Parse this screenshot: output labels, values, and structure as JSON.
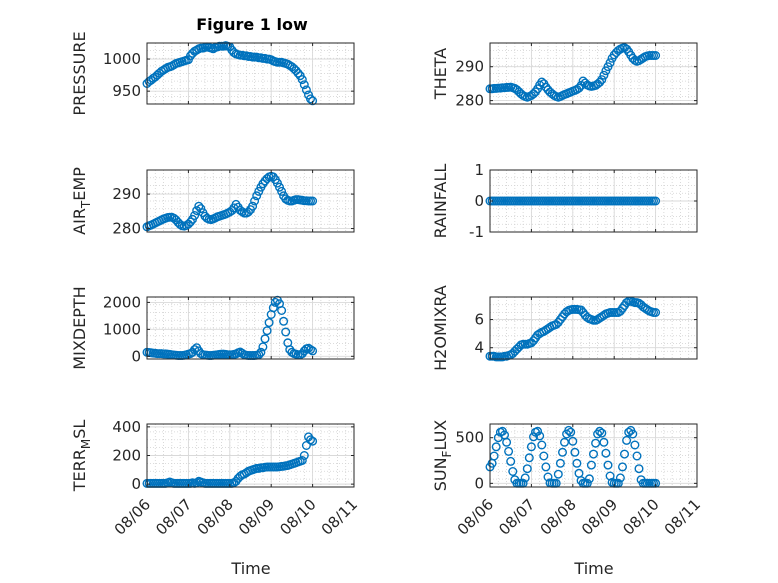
{
  "figure": {
    "title": "Figure 1 low",
    "xlabel": "Time",
    "x_ticklabels": [
      "08/06",
      "08/07",
      "08/08",
      "08/09",
      "08/10",
      "08/11"
    ],
    "marker_color": "#0072BD"
  },
  "chart_data": [
    {
      "type": "scatter",
      "ylabel": "PRESSURE",
      "title": "Figure 1 low",
      "xlim": [
        6,
        11
      ],
      "ylim": [
        930,
        1025
      ],
      "yticks": [
        950,
        1000
      ],
      "grid": true,
      "x": [
        6.0,
        6.05,
        6.1,
        6.15,
        6.2,
        6.25,
        6.3,
        6.35,
        6.4,
        6.45,
        6.5,
        6.55,
        6.6,
        6.65,
        6.7,
        6.75,
        6.8,
        6.85,
        6.9,
        6.95,
        7.0,
        7.05,
        7.1,
        7.15,
        7.2,
        7.25,
        7.3,
        7.35,
        7.4,
        7.45,
        7.5,
        7.55,
        7.6,
        7.65,
        7.7,
        7.75,
        7.8,
        7.85,
        7.9,
        7.95,
        8.0,
        8.05,
        8.1,
        8.15,
        8.2,
        8.25,
        8.3,
        8.35,
        8.4,
        8.45,
        8.5,
        8.55,
        8.6,
        8.65,
        8.7,
        8.75,
        8.8,
        8.85,
        8.9,
        8.95,
        9.0,
        9.05,
        9.1,
        9.15,
        9.2,
        9.25,
        9.3,
        9.35,
        9.4,
        9.45,
        9.5,
        9.55,
        9.6,
        9.65,
        9.7,
        9.75,
        9.8,
        9.85,
        9.9,
        9.95,
        10.0
      ],
      "y": [
        962,
        965,
        967,
        970,
        972,
        975,
        978,
        981,
        983,
        985,
        987,
        988,
        989,
        991,
        993,
        994,
        995,
        996,
        997,
        998,
        999,
        1005,
        1009,
        1012,
        1014,
        1016,
        1017,
        1017,
        1018,
        1019,
        1018,
        1017,
        1016,
        1018,
        1019,
        1020,
        1020,
        1020,
        1021,
        1020,
        1019,
        1014,
        1010,
        1008,
        1007,
        1006,
        1006,
        1005,
        1005,
        1004,
        1004,
        1003,
        1003,
        1003,
        1002,
        1002,
        1001,
        1001,
        1000,
        1000,
        999,
        997,
        996,
        995,
        995,
        995,
        994,
        993,
        992,
        990,
        988,
        985,
        982,
        978,
        974,
        968,
        960,
        952,
        944,
        938,
        935
      ]
    },
    {
      "type": "scatter",
      "ylabel": "THETA",
      "xlim": [
        6,
        11
      ],
      "ylim": [
        279,
        297
      ],
      "yticks": [
        280,
        290
      ],
      "grid": true,
      "x": [
        6.0,
        6.05,
        6.1,
        6.15,
        6.2,
        6.25,
        6.3,
        6.35,
        6.4,
        6.45,
        6.5,
        6.55,
        6.6,
        6.65,
        6.7,
        6.75,
        6.8,
        6.85,
        6.9,
        6.95,
        7.0,
        7.05,
        7.1,
        7.15,
        7.2,
        7.25,
        7.3,
        7.35,
        7.4,
        7.45,
        7.5,
        7.55,
        7.6,
        7.65,
        7.7,
        7.75,
        7.8,
        7.85,
        7.9,
        7.95,
        8.0,
        8.05,
        8.1,
        8.15,
        8.2,
        8.25,
        8.3,
        8.35,
        8.4,
        8.45,
        8.5,
        8.55,
        8.6,
        8.65,
        8.7,
        8.75,
        8.8,
        8.85,
        8.9,
        8.95,
        9.0,
        9.05,
        9.1,
        9.15,
        9.2,
        9.25,
        9.3,
        9.35,
        9.4,
        9.45,
        9.5,
        9.55,
        9.6,
        9.65,
        9.7,
        9.75,
        9.8,
        9.85,
        9.9,
        9.95,
        10.0
      ],
      "y": [
        283.5,
        283.5,
        283.6,
        283.6,
        283.7,
        283.7,
        283.8,
        283.8,
        283.9,
        283.9,
        284.0,
        283.8,
        283.6,
        283.2,
        282.6,
        282.0,
        281.5,
        281.2,
        281.0,
        281.2,
        281.5,
        282.0,
        282.6,
        283.5,
        284.6,
        285.5,
        285.0,
        284.0,
        283.2,
        282.5,
        282.0,
        281.5,
        281.2,
        281.0,
        281.2,
        281.5,
        281.8,
        282.0,
        282.3,
        282.5,
        282.8,
        283.0,
        283.3,
        283.7,
        284.5,
        285.8,
        285.2,
        284.6,
        284.3,
        284.2,
        284.3,
        284.5,
        284.9,
        285.4,
        286.2,
        287.5,
        288.8,
        290.0,
        291.2,
        292.5,
        293.5,
        294.2,
        294.8,
        295.2,
        295.5,
        295.6,
        295.2,
        294.4,
        293.4,
        292.5,
        291.9,
        291.6,
        291.8,
        292.2,
        292.6,
        293.0,
        293.2,
        293.3,
        293.3,
        293.3,
        293.3
      ]
    },
    {
      "type": "scatter",
      "ylabel": "AIR_TEMP",
      "xlim": [
        6,
        11
      ],
      "ylim": [
        279,
        297
      ],
      "yticks": [
        280,
        290
      ],
      "grid": true,
      "x": [
        6.0,
        6.05,
        6.1,
        6.15,
        6.2,
        6.25,
        6.3,
        6.35,
        6.4,
        6.45,
        6.5,
        6.55,
        6.6,
        6.65,
        6.7,
        6.75,
        6.8,
        6.85,
        6.9,
        6.95,
        7.0,
        7.05,
        7.1,
        7.15,
        7.2,
        7.25,
        7.3,
        7.35,
        7.4,
        7.45,
        7.5,
        7.55,
        7.6,
        7.65,
        7.7,
        7.75,
        7.8,
        7.85,
        7.9,
        7.95,
        8.0,
        8.05,
        8.1,
        8.15,
        8.2,
        8.25,
        8.3,
        8.35,
        8.4,
        8.45,
        8.5,
        8.55,
        8.6,
        8.65,
        8.7,
        8.75,
        8.8,
        8.85,
        8.9,
        8.95,
        9.0,
        9.05,
        9.1,
        9.15,
        9.2,
        9.25,
        9.3,
        9.35,
        9.4,
        9.45,
        9.5,
        9.55,
        9.6,
        9.65,
        9.7,
        9.75,
        9.8,
        9.85,
        9.9,
        9.95,
        10.0
      ],
      "y": [
        280.5,
        280.8,
        281.0,
        281.3,
        281.6,
        281.9,
        282.2,
        282.5,
        282.8,
        283.0,
        283.2,
        283.3,
        283.3,
        283.0,
        282.5,
        281.8,
        281.2,
        280.8,
        280.7,
        280.9,
        281.3,
        281.9,
        282.7,
        283.8,
        285.2,
        286.5,
        285.8,
        284.6,
        283.6,
        283.0,
        282.7,
        282.6,
        282.8,
        283.1,
        283.4,
        283.6,
        283.8,
        284.0,
        284.2,
        284.5,
        284.8,
        285.2,
        286.0,
        287.0,
        286.2,
        285.3,
        284.9,
        284.5,
        284.5,
        284.8,
        285.5,
        286.5,
        288.0,
        289.5,
        290.8,
        292.0,
        293.0,
        293.8,
        294.5,
        295.0,
        295.2,
        295.0,
        294.2,
        293.2,
        292.0,
        290.8,
        289.5,
        288.6,
        288.2,
        288.0,
        288.0,
        288.2,
        288.4,
        288.4,
        288.3,
        288.2,
        288.1,
        288.1,
        288.0,
        288.0,
        288.0
      ]
    },
    {
      "type": "scatter",
      "ylabel": "RAINFALL",
      "xlim": [
        6,
        11
      ],
      "ylim": [
        -1,
        1
      ],
      "yticks": [
        -1,
        0,
        1
      ],
      "grid": true,
      "x": [
        6.0,
        6.05,
        6.1,
        6.15,
        6.2,
        6.25,
        6.3,
        6.35,
        6.4,
        6.45,
        6.5,
        6.55,
        6.6,
        6.65,
        6.7,
        6.75,
        6.8,
        6.85,
        6.9,
        6.95,
        7.0,
        7.05,
        7.1,
        7.15,
        7.2,
        7.25,
        7.3,
        7.35,
        7.4,
        7.45,
        7.5,
        7.55,
        7.6,
        7.65,
        7.7,
        7.75,
        7.8,
        7.85,
        7.9,
        7.95,
        8.0,
        8.05,
        8.1,
        8.15,
        8.2,
        8.25,
        8.3,
        8.35,
        8.4,
        8.45,
        8.5,
        8.55,
        8.6,
        8.65,
        8.7,
        8.75,
        8.8,
        8.85,
        8.9,
        8.95,
        9.0,
        9.05,
        9.1,
        9.15,
        9.2,
        9.25,
        9.3,
        9.35,
        9.4,
        9.45,
        9.5,
        9.55,
        9.6,
        9.65,
        9.7,
        9.75,
        9.8,
        9.85,
        9.9,
        9.95,
        10.0
      ],
      "y": [
        0,
        0,
        0,
        0,
        0,
        0,
        0,
        0,
        0,
        0,
        0,
        0,
        0,
        0,
        0,
        0,
        0,
        0,
        0,
        0,
        0,
        0,
        0,
        0,
        0,
        0,
        0,
        0,
        0,
        0,
        0,
        0,
        0,
        0,
        0,
        0,
        0,
        0,
        0,
        0,
        0,
        0,
        0,
        0,
        0,
        0,
        0,
        0,
        0,
        0,
        0,
        0,
        0,
        0,
        0,
        0,
        0,
        0,
        0,
        0,
        0,
        0,
        0,
        0,
        0,
        0,
        0,
        0,
        0,
        0,
        0,
        0,
        0,
        0,
        0,
        0,
        0,
        0,
        0,
        0,
        0
      ]
    },
    {
      "type": "scatter",
      "ylabel": "MIXDEPTH",
      "xlim": [
        6,
        11
      ],
      "ylim": [
        -100,
        2200
      ],
      "yticks": [
        0,
        1000,
        2000
      ],
      "grid": true,
      "x": [
        6.0,
        6.05,
        6.1,
        6.15,
        6.2,
        6.25,
        6.3,
        6.35,
        6.4,
        6.45,
        6.5,
        6.55,
        6.6,
        6.65,
        6.7,
        6.75,
        6.8,
        6.85,
        6.9,
        6.95,
        7.0,
        7.05,
        7.1,
        7.15,
        7.2,
        7.25,
        7.3,
        7.35,
        7.4,
        7.45,
        7.5,
        7.55,
        7.6,
        7.65,
        7.7,
        7.75,
        7.8,
        7.85,
        7.9,
        7.95,
        8.0,
        8.05,
        8.1,
        8.15,
        8.2,
        8.25,
        8.3,
        8.35,
        8.4,
        8.45,
        8.5,
        8.55,
        8.6,
        8.65,
        8.7,
        8.75,
        8.8,
        8.85,
        8.9,
        8.95,
        9.0,
        9.05,
        9.1,
        9.15,
        9.2,
        9.25,
        9.3,
        9.35,
        9.4,
        9.45,
        9.5,
        9.55,
        9.6,
        9.65,
        9.7,
        9.75,
        9.8,
        9.85,
        9.9,
        9.95,
        10.0
      ],
      "y": [
        150,
        140,
        130,
        120,
        110,
        100,
        100,
        100,
        90,
        90,
        80,
        70,
        60,
        50,
        40,
        30,
        30,
        30,
        40,
        60,
        80,
        100,
        150,
        250,
        320,
        200,
        100,
        60,
        50,
        40,
        30,
        30,
        40,
        50,
        60,
        70,
        80,
        80,
        70,
        60,
        60,
        60,
        70,
        90,
        130,
        160,
        110,
        60,
        40,
        30,
        30,
        30,
        30,
        40,
        60,
        150,
        350,
        650,
        950,
        1250,
        1550,
        1800,
        2000,
        2080,
        1950,
        1700,
        1300,
        900,
        500,
        250,
        150,
        100,
        80,
        60,
        60,
        100,
        200,
        280,
        300,
        250,
        200
      ]
    },
    {
      "type": "scatter",
      "ylabel": "H2OMIXRA",
      "xlim": [
        6,
        11
      ],
      "ylim": [
        3.2,
        7.6
      ],
      "yticks": [
        4,
        6
      ],
      "grid": true,
      "x": [
        6.0,
        6.05,
        6.1,
        6.15,
        6.2,
        6.25,
        6.3,
        6.35,
        6.4,
        6.45,
        6.5,
        6.55,
        6.6,
        6.65,
        6.7,
        6.75,
        6.8,
        6.85,
        6.9,
        6.95,
        7.0,
        7.05,
        7.1,
        7.15,
        7.2,
        7.25,
        7.3,
        7.35,
        7.4,
        7.45,
        7.5,
        7.55,
        7.6,
        7.65,
        7.7,
        7.75,
        7.8,
        7.85,
        7.9,
        7.95,
        8.0,
        8.05,
        8.1,
        8.15,
        8.2,
        8.25,
        8.3,
        8.35,
        8.4,
        8.45,
        8.5,
        8.55,
        8.6,
        8.65,
        8.7,
        8.75,
        8.8,
        8.85,
        8.9,
        8.95,
        9.0,
        9.05,
        9.1,
        9.15,
        9.2,
        9.25,
        9.3,
        9.35,
        9.4,
        9.45,
        9.5,
        9.55,
        9.6,
        9.65,
        9.7,
        9.75,
        9.8,
        9.85,
        9.9,
        9.95,
        10.0
      ],
      "y": [
        3.4,
        3.4,
        3.4,
        3.35,
        3.35,
        3.35,
        3.35,
        3.4,
        3.4,
        3.45,
        3.5,
        3.6,
        3.75,
        3.9,
        4.05,
        4.2,
        4.25,
        4.25,
        4.25,
        4.3,
        4.35,
        4.5,
        4.7,
        4.9,
        5.0,
        5.1,
        5.15,
        5.25,
        5.35,
        5.45,
        5.55,
        5.6,
        5.65,
        5.8,
        6.0,
        6.2,
        6.4,
        6.55,
        6.65,
        6.7,
        6.72,
        6.72,
        6.72,
        6.7,
        6.68,
        6.5,
        6.3,
        6.15,
        6.05,
        6.0,
        5.95,
        5.95,
        6.0,
        6.1,
        6.2,
        6.3,
        6.4,
        6.45,
        6.5,
        6.5,
        6.5,
        6.5,
        6.5,
        6.6,
        6.8,
        7.0,
        7.2,
        7.3,
        7.3,
        7.25,
        7.2,
        7.2,
        7.15,
        7.05,
        6.9,
        6.8,
        6.7,
        6.6,
        6.55,
        6.5,
        6.5
      ]
    },
    {
      "type": "scatter",
      "ylabel": "TERR_MSL",
      "xlim": [
        6,
        11
      ],
      "ylim": [
        -20,
        420
      ],
      "yticks": [
        0,
        200,
        400
      ],
      "grid": true,
      "x": [
        6.0,
        6.05,
        6.1,
        6.15,
        6.2,
        6.25,
        6.3,
        6.35,
        6.4,
        6.45,
        6.5,
        6.55,
        6.6,
        6.65,
        6.7,
        6.75,
        6.8,
        6.85,
        6.9,
        6.95,
        7.0,
        7.05,
        7.1,
        7.15,
        7.2,
        7.25,
        7.3,
        7.35,
        7.4,
        7.45,
        7.5,
        7.55,
        7.6,
        7.65,
        7.7,
        7.75,
        7.8,
        7.85,
        7.9,
        7.95,
        8.0,
        8.05,
        8.1,
        8.15,
        8.2,
        8.25,
        8.3,
        8.35,
        8.4,
        8.45,
        8.5,
        8.55,
        8.6,
        8.65,
        8.7,
        8.75,
        8.8,
        8.85,
        8.9,
        8.95,
        9.0,
        9.05,
        9.1,
        9.15,
        9.2,
        9.25,
        9.3,
        9.35,
        9.4,
        9.45,
        9.5,
        9.55,
        9.6,
        9.65,
        9.7,
        9.75,
        9.8,
        9.85,
        9.9,
        9.95,
        10.0
      ],
      "y": [
        5,
        5,
        5,
        5,
        5,
        5,
        5,
        5,
        5,
        5,
        10,
        15,
        10,
        5,
        5,
        5,
        5,
        5,
        5,
        5,
        5,
        5,
        10,
        5,
        10,
        20,
        15,
        10,
        5,
        5,
        5,
        5,
        5,
        5,
        5,
        5,
        5,
        5,
        5,
        5,
        5,
        5,
        10,
        20,
        40,
        55,
        65,
        70,
        80,
        90,
        95,
        100,
        105,
        110,
        110,
        115,
        115,
        118,
        120,
        120,
        120,
        120,
        120,
        120,
        122,
        124,
        125,
        128,
        130,
        135,
        140,
        145,
        150,
        155,
        160,
        165,
        200,
        270,
        330,
        310,
        300
      ]
    },
    {
      "type": "scatter",
      "ylabel": "SUN_FLUX",
      "xlim": [
        6,
        11
      ],
      "ylim": [
        -40,
        650
      ],
      "yticks": [
        0,
        500
      ],
      "grid": true,
      "x": [
        6.0,
        6.05,
        6.1,
        6.15,
        6.2,
        6.25,
        6.3,
        6.35,
        6.4,
        6.45,
        6.5,
        6.55,
        6.6,
        6.65,
        6.7,
        6.75,
        6.8,
        6.85,
        6.9,
        6.95,
        7.0,
        7.05,
        7.1,
        7.15,
        7.2,
        7.25,
        7.3,
        7.35,
        7.4,
        7.45,
        7.5,
        7.55,
        7.6,
        7.65,
        7.7,
        7.75,
        7.8,
        7.85,
        7.9,
        7.95,
        8.0,
        8.05,
        8.1,
        8.15,
        8.2,
        8.25,
        8.3,
        8.35,
        8.4,
        8.45,
        8.5,
        8.55,
        8.6,
        8.65,
        8.7,
        8.75,
        8.8,
        8.85,
        8.9,
        8.95,
        9.0,
        9.05,
        9.1,
        9.15,
        9.2,
        9.25,
        9.3,
        9.35,
        9.4,
        9.45,
        9.5,
        9.55,
        9.6,
        9.65,
        9.7,
        9.75,
        9.8,
        9.85,
        9.9,
        9.95,
        10.0
      ],
      "y": [
        180,
        220,
        300,
        400,
        500,
        560,
        570,
        530,
        450,
        350,
        240,
        130,
        40,
        0,
        0,
        0,
        0,
        60,
        160,
        280,
        400,
        510,
        560,
        570,
        520,
        420,
        300,
        180,
        70,
        5,
        0,
        0,
        0,
        100,
        220,
        340,
        450,
        540,
        580,
        560,
        460,
        340,
        220,
        110,
        30,
        0,
        0,
        0,
        50,
        200,
        320,
        440,
        540,
        570,
        550,
        450,
        330,
        200,
        80,
        10,
        0,
        0,
        0,
        60,
        180,
        320,
        470,
        560,
        580,
        540,
        420,
        300,
        160,
        40,
        0,
        0,
        0,
        0,
        0,
        0,
        0
      ]
    }
  ]
}
